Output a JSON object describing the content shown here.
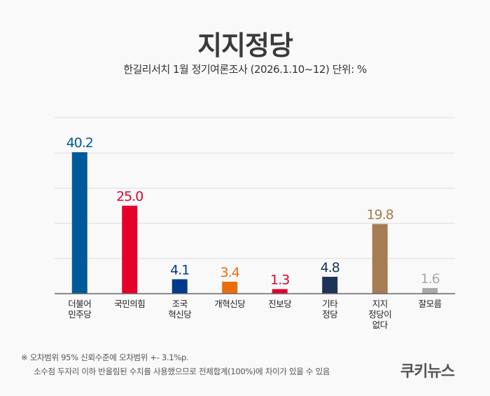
{
  "title": "지지정당",
  "subtitle": "한길리서치 1월 정기여론조사 (2026.1.10~12) 단위: %",
  "notes": [
    "※ 오차범위 95% 신뢰수준에 오차범위 +- 3.1%p.",
    "소수점 두자리 이하 반올림된 수치를 사용했으므로 전체합계(100%)에 차이가 있을 수 있음"
  ],
  "logo": "쿠키뉴스",
  "chart_data": {
    "type": "bar",
    "title": "지지정당",
    "categories": [
      [
        "더불어",
        "민주당"
      ],
      [
        "국민의힘"
      ],
      [
        "조국",
        "혁신당"
      ],
      [
        "개혁신당"
      ],
      [
        "진보당"
      ],
      [
        "기타",
        "정당"
      ],
      [
        "지지",
        "정당이",
        "없다"
      ],
      [
        "잘모름"
      ]
    ],
    "values": [
      40.2,
      25.0,
      4.1,
      3.4,
      1.3,
      4.8,
      19.8,
      1.6
    ],
    "labels": [
      "40.2",
      "25.0",
      "4.1",
      "3.4",
      "1.3",
      "4.8",
      "19.8",
      "1.6"
    ],
    "colors": [
      "#005a9a",
      "#e4002b",
      "#003a8c",
      "#e96d0b",
      "#e4002b",
      "#1c3457",
      "#a67c52",
      "#aaaaaa"
    ],
    "ylim": [
      0,
      50
    ],
    "grid": true,
    "unit": "%"
  }
}
